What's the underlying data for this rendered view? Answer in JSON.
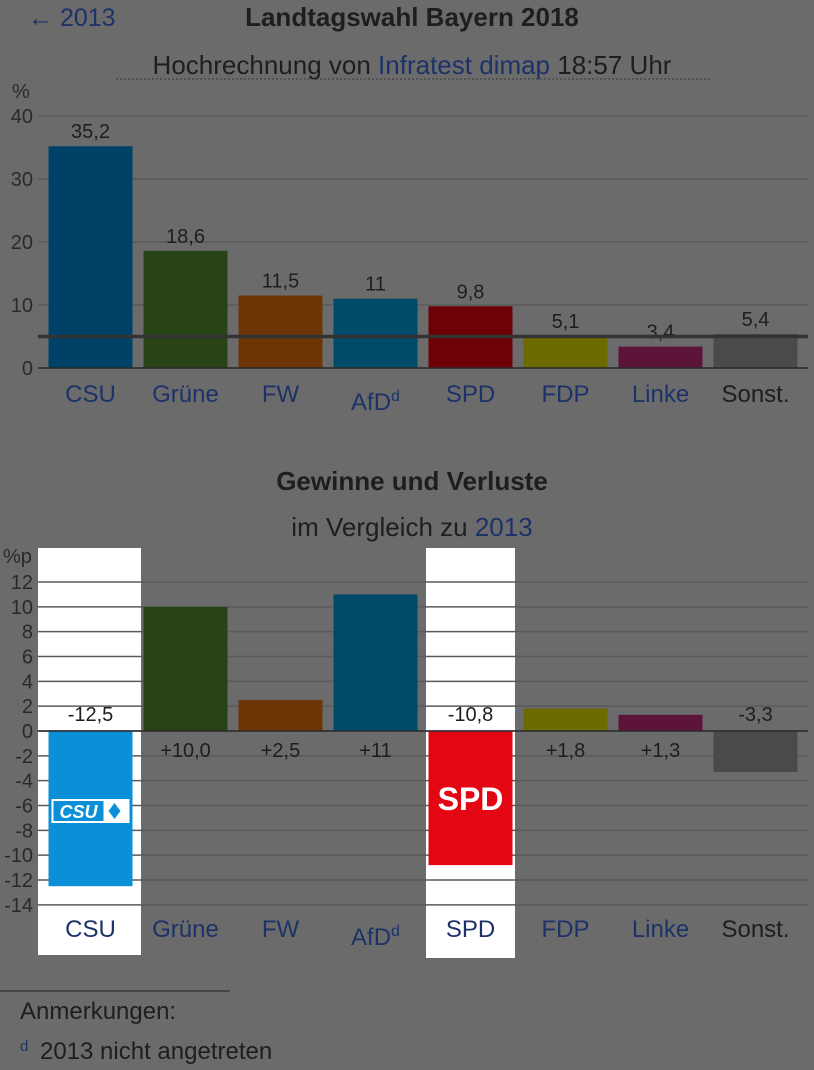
{
  "header": {
    "back_link": "← 2013",
    "title": "Landtagswahl Bayern 2018",
    "subtitle_pre": "Hochrechnung von",
    "subtitle_link": "Infratest dimap",
    "subtitle_post": "18:57 Uhr"
  },
  "gains_header": {
    "title": "Gewinne und Verluste",
    "subtitle_pre": "im Vergleich zu",
    "subtitle_link": "2013"
  },
  "notes": {
    "heading": "Anmerkungen:",
    "marker": "d",
    "text": "2013 nicht angetreten"
  },
  "colors": {
    "background": "#6b6b6b",
    "link": "#1c3268",
    "text": "#1e1e1e",
    "gridline": "#5a5a5a",
    "threshold": "#333333",
    "highlight_panel": "#ffffff",
    "csu_logo": "#0b8fd6",
    "spd_logo": "#e30613"
  },
  "chart_data": [
    {
      "type": "bar",
      "title": "Landtagswahl Bayern 2018",
      "subtitle": "Hochrechnung von Infratest dimap 18:57 Uhr",
      "ylabel": "%",
      "ylim": [
        0,
        40
      ],
      "yticks": [
        0,
        10,
        20,
        30,
        40
      ],
      "grid": true,
      "threshold": 5,
      "categories": [
        "CSU",
        "Grüne",
        "FW",
        "AfD",
        "SPD",
        "FDP",
        "Linke",
        "Sonst."
      ],
      "category_superscripts": [
        "",
        "",
        "",
        "d",
        "",
        "",
        "",
        ""
      ],
      "values": [
        35.2,
        18.6,
        11.5,
        11,
        9.8,
        5.1,
        3.4,
        5.4
      ],
      "value_labels": [
        "35,2",
        "18,6",
        "11,5",
        "11",
        "9,8",
        "5,1",
        "3,4",
        "5,4"
      ],
      "bar_colors": [
        "#004167",
        "#284416",
        "#6e3506",
        "#004a6a",
        "#6e0007",
        "#6c6a00",
        "#5c1438",
        "#4a4a4a"
      ],
      "label_colors": [
        "#1c3268",
        "#1c3268",
        "#1c3268",
        "#1c3268",
        "#1c3268",
        "#1c3268",
        "#1c3268",
        "#1e1e1e"
      ]
    },
    {
      "type": "bar",
      "title": "Gewinne und Verluste",
      "subtitle": "im Vergleich zu 2013",
      "ylabel": "%p",
      "ylim": [
        -14,
        12
      ],
      "yticks": [
        -14,
        -12,
        -10,
        -8,
        -6,
        -4,
        -2,
        0,
        2,
        4,
        6,
        8,
        10,
        12
      ],
      "grid": true,
      "categories": [
        "CSU",
        "Grüne",
        "FW",
        "AfD",
        "SPD",
        "FDP",
        "Linke",
        "Sonst."
      ],
      "category_superscripts": [
        "",
        "",
        "",
        "d",
        "",
        "",
        "",
        ""
      ],
      "values": [
        -12.5,
        10.0,
        2.5,
        11,
        -10.8,
        1.8,
        1.3,
        -3.3
      ],
      "value_labels": [
        "-12,5",
        "+10,0",
        "+2,5",
        "+11",
        "-10,8",
        "+1,8",
        "+1,3",
        "-3,3"
      ],
      "bar_colors": [
        "#0b8fd6",
        "#284416",
        "#6e3506",
        "#004a6a",
        "#e30613",
        "#6c6a00",
        "#5c1438",
        "#4a4a4a"
      ],
      "label_colors": [
        "#1c3268",
        "#1c3268",
        "#1c3268",
        "#1c3268",
        "#1c3268",
        "#1c3268",
        "#1c3268",
        "#1e1e1e"
      ],
      "highlighted": [
        "CSU",
        "SPD"
      ],
      "logos": [
        "CSU",
        "",
        "",
        "",
        "SPD",
        "",
        "",
        ""
      ]
    }
  ]
}
